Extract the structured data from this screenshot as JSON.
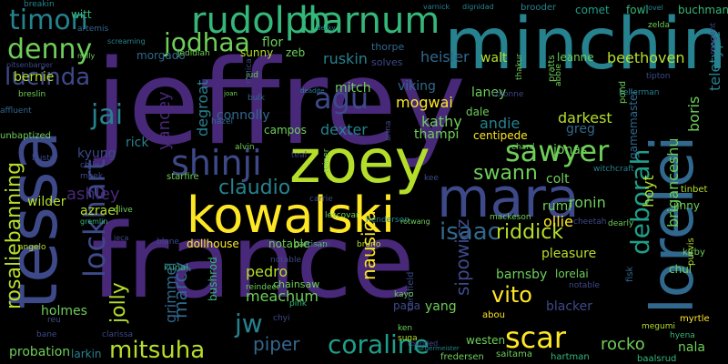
{
  "words": [
    "jeffrey",
    "france",
    "minchin",
    "tessa",
    "zoey",
    "kowalski",
    "mara",
    "lorelei",
    "rudolph",
    "barnum",
    "timon",
    "denny",
    "jodhaa",
    "lucinda",
    "lockhart",
    "sawyer",
    "deborah",
    "shinji",
    "agu",
    "jai",
    "coraline",
    "mitsuha",
    "scar",
    "rosaliebanning",
    "claudio",
    "isaac",
    "riddick",
    "vito",
    "mitch",
    "viking",
    "mogwai",
    "swann",
    "jolly",
    "marcy",
    "yancey",
    "jw",
    "pedro",
    "piper",
    "rocko",
    "meachum",
    "beethoven",
    "ruskin",
    "heisler",
    "walt",
    "leanne",
    "teletype",
    "boris",
    "briganceshu",
    "hoyt",
    "rumi",
    "ollie",
    "colt",
    "ronin",
    "laney",
    "andie",
    "darkest",
    "greg",
    "centipede",
    "kathy",
    "dale",
    "thampi",
    "dexter",
    "connolly",
    "campos",
    "degroat",
    "rick",
    "kyung",
    "ashley",
    "azrael",
    "wilder",
    "bernie",
    "flor",
    "zeb",
    "sunny",
    "witt",
    "buchman",
    "comet",
    "fowl",
    "brooder",
    "dignidad",
    "varnick",
    "breakin",
    "artemis",
    "morgado",
    "jedidiah",
    "thorpe",
    "solves",
    "pitsenbarger",
    "affluent",
    "breslin",
    "jud",
    "ronica",
    "bulk",
    "hazel",
    "alvin",
    "teal",
    "starfire",
    "meek",
    "chile",
    "clive",
    "gremlin",
    "jeca",
    "blane",
    "dollhouse",
    "notable",
    "bushrod",
    "kunal",
    "grimmel",
    "chainsaw",
    "pink",
    "notable",
    "partisan",
    "chyi",
    "papa",
    "yang",
    "sipowicz",
    "nausica",
    "blacker",
    "lorelai",
    "fisk",
    "barnsby",
    "pleasure",
    "chul",
    "kirby",
    "nala",
    "hyena",
    "megumi",
    "myrtle",
    "baalsrud",
    "hartman",
    "saitama",
    "fredersen",
    "ken",
    "westen",
    "suga",
    "probation",
    "larkin",
    "holmes",
    "reu",
    "bane",
    "clarissa",
    "angelo",
    "mackeson",
    "lescovar",
    "henderson",
    "rotwang",
    "jonas",
    "witchcraft",
    "tinbet",
    "jinny",
    "dearly",
    "purvis",
    "kellerman",
    "tipton",
    "zelda",
    "pond",
    "reagent",
    "gamemaster",
    "kee",
    "chard",
    "reiner",
    "abbie",
    "pratts",
    "thakur",
    "colonne",
    "anna",
    "unbaptized",
    "buster",
    "reindeer",
    "cornfield",
    "kayo",
    "abou",
    "notable",
    "cheetah",
    "rourke",
    "bruno",
    "carrie",
    "novel",
    "decky",
    "screaming",
    "milly",
    "joan",
    "deadite",
    "rounded",
    "burgermeister",
    "ashbrook"
  ],
  "palette": [
    "#440154",
    "#482878",
    "#3e4989",
    "#31688e",
    "#26828e",
    "#1f9e89",
    "#35b779",
    "#6ece58",
    "#b5de2b",
    "#fde725"
  ]
}
